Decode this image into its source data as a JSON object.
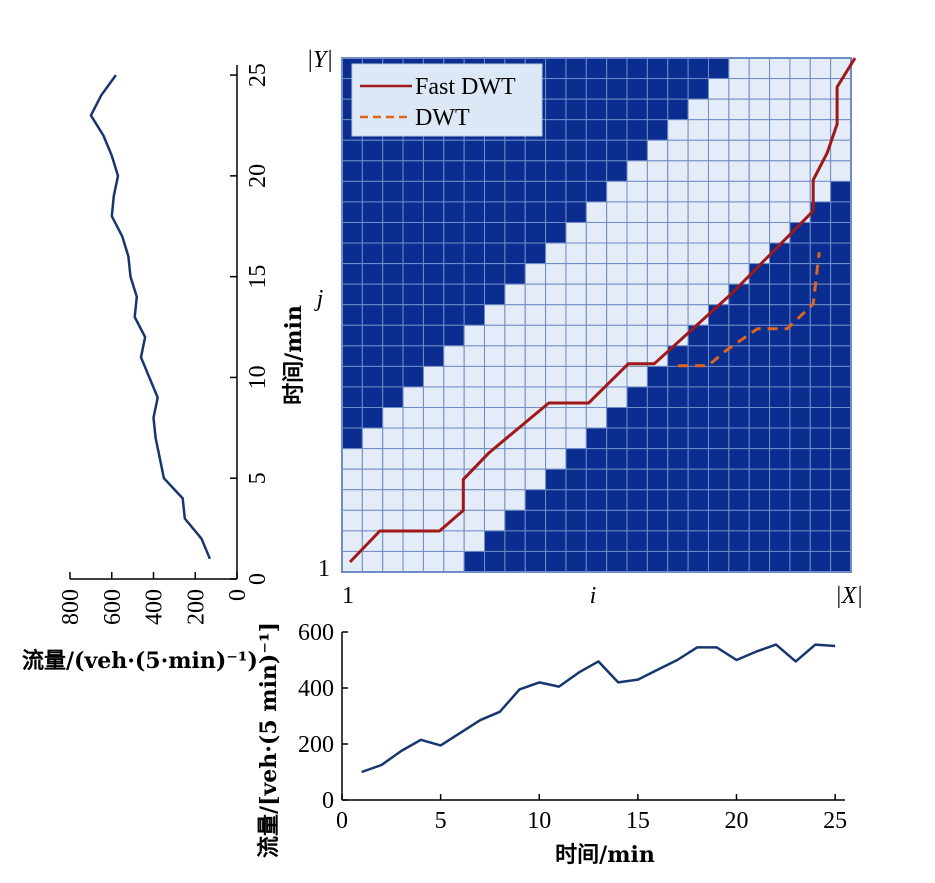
{
  "chart_data": [
    {
      "type": "heatmap",
      "grid": {
        "cols": 25,
        "rows": 25,
        "band_below": 5,
        "band_above": 5
      },
      "xlabel": "i",
      "ylabel": "j",
      "x_tick_labels": [
        "1",
        "|X|"
      ],
      "y_tick_labels": [
        "1",
        "|Y|"
      ],
      "legend": {
        "position": "top-left",
        "entries": [
          "Fast DWT",
          "DWT"
        ]
      },
      "colors": {
        "blocked": "#0a2d8f",
        "allowed": "#e4ecf8",
        "grid": "#6f8cc6",
        "fast_dwt": "#a01818",
        "dwt": "#e0651a"
      },
      "series": [
        {
          "name": "Fast DWT",
          "style": "solid",
          "points": [
            [
              1,
              1
            ],
            [
              2.5,
              2.5
            ],
            [
              5.5,
              2.5
            ],
            [
              6.7,
              3.5
            ],
            [
              6.7,
              5
            ],
            [
              8,
              6.3
            ],
            [
              11,
              8.7
            ],
            [
              13,
              8.7
            ],
            [
              15,
              10.6
            ],
            [
              16.3,
              10.6
            ],
            [
              20.2,
              14
            ],
            [
              24.3,
              18
            ],
            [
              24.3,
              19.5
            ],
            [
              25,
              20.8
            ],
            [
              25.5,
              22.2
            ],
            [
              25.5,
              24
            ],
            [
              26.4,
              25.4
            ]
          ],
          "x_scale_note": "grid units"
        },
        {
          "name": "DWT",
          "style": "dashed",
          "points": [
            [
              17.5,
              10.5
            ],
            [
              19,
              10.5
            ],
            [
              20,
              11.3
            ],
            [
              21.5,
              12.3
            ],
            [
              23,
              12.3
            ],
            [
              24.3,
              13.5
            ],
            [
              24.6,
              16
            ]
          ]
        }
      ]
    },
    {
      "type": "line",
      "orientation": "vertical",
      "x": [
        1,
        2,
        3,
        4,
        5,
        6,
        7,
        8,
        9,
        10,
        11,
        12,
        13,
        14,
        15,
        16,
        17,
        18,
        19,
        20,
        21,
        22,
        23,
        24,
        25
      ],
      "values": [
        130,
        170,
        250,
        260,
        350,
        370,
        390,
        400,
        380,
        420,
        460,
        440,
        490,
        480,
        510,
        520,
        550,
        600,
        590,
        570,
        600,
        640,
        700,
        650,
        580
      ],
      "ylabel": "时间/min",
      "xlabel": "流量/(veh·(5·min)⁻¹)",
      "y_ticks": [
        "0",
        "5",
        "10",
        "15",
        "20",
        "25"
      ],
      "x_ticks": [
        "800",
        "600",
        "400",
        "200",
        "0"
      ],
      "ylim": [
        0,
        25.5
      ],
      "xlim": [
        0,
        800
      ]
    },
    {
      "type": "line",
      "x": [
        1,
        2,
        3,
        4,
        5,
        6,
        7,
        8,
        9,
        10,
        11,
        12,
        13,
        14,
        15,
        16,
        17,
        18,
        19,
        20,
        21,
        22,
        23,
        24,
        25
      ],
      "values": [
        100,
        125,
        175,
        215,
        195,
        240,
        285,
        315,
        395,
        420,
        405,
        455,
        495,
        420,
        430,
        465,
        500,
        545,
        545,
        500,
        530,
        555,
        495,
        555,
        550
      ],
      "xlabel": "时间/min",
      "ylabel": "流量/[veh·(5 min)⁻¹]",
      "x_ticks": [
        "0",
        "5",
        "10",
        "15",
        "20",
        "25"
      ],
      "y_ticks": [
        "0",
        "200",
        "400",
        "600"
      ],
      "xlim": [
        0,
        25.5
      ],
      "ylim": [
        0,
        600
      ]
    }
  ]
}
